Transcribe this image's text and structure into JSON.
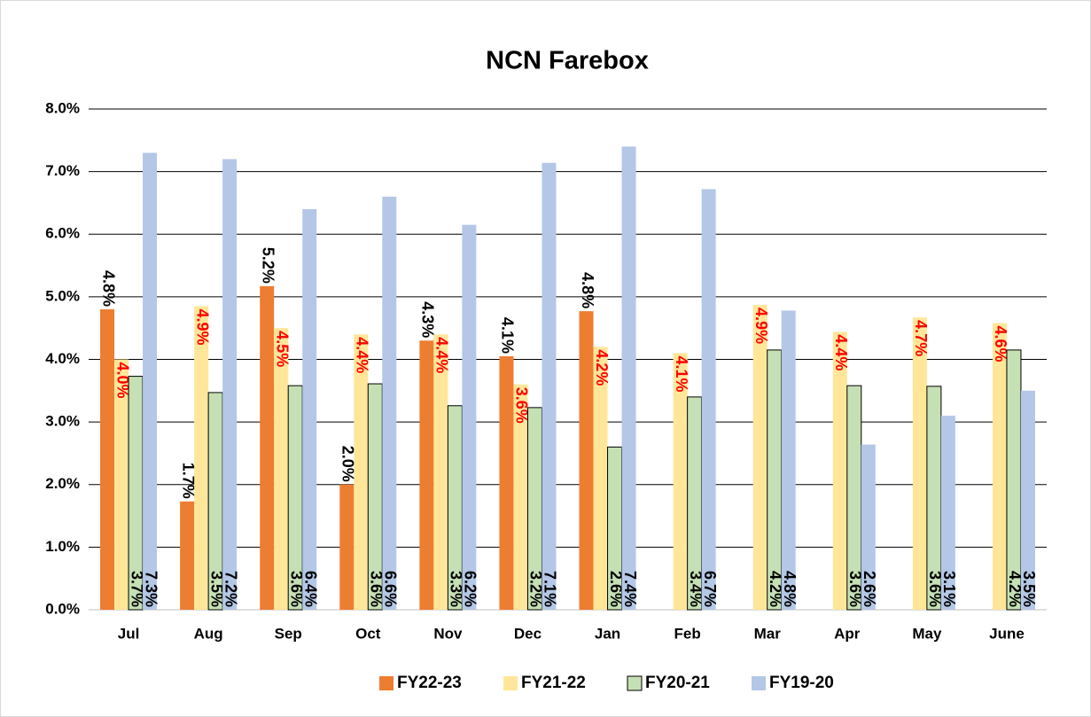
{
  "chart_data": {
    "type": "bar",
    "title": "NCN Farebox",
    "categories": [
      "Jul",
      "Aug",
      "Sep",
      "Oct",
      "Nov",
      "Dec",
      "Jan",
      "Feb",
      "Mar",
      "Apr",
      "May",
      "June"
    ],
    "series": [
      {
        "name": "FY22-23",
        "color": "#ED7D31",
        "label_color": "#000000",
        "values": [
          4.8,
          1.73,
          5.17,
          2.0,
          4.3,
          4.05,
          4.77,
          null,
          null,
          null,
          null,
          null
        ],
        "value_labels": [
          "4.8%",
          "1.7%",
          "5.2%",
          "2.0%",
          "4.3%",
          "4.1%",
          "4.8%",
          null,
          null,
          null,
          null,
          null
        ]
      },
      {
        "name": "FY21-22",
        "color": "#FFE699",
        "label_color": "#FF0000",
        "values": [
          4.0,
          4.85,
          4.5,
          4.4,
          4.4,
          3.6,
          4.2,
          4.1,
          4.87,
          4.44,
          4.67,
          4.58
        ],
        "value_labels": [
          "4.0%",
          "4.9%",
          "4.5%",
          "4.4%",
          "4.4%",
          "3.6%",
          "4.2%",
          "4.1%",
          "4.9%",
          "4.4%",
          "4.7%",
          "4.6%"
        ]
      },
      {
        "name": "FY20-21",
        "color": "#C5E0B4",
        "edgecolor": "#000000",
        "label_color": "#000000",
        "values": [
          3.73,
          3.47,
          3.58,
          3.61,
          3.26,
          3.23,
          2.6,
          3.4,
          4.15,
          3.58,
          3.57,
          4.15
        ],
        "value_labels": [
          "3.7%",
          "3.5%",
          "3.6%",
          "3.6%",
          "3.3%",
          "3.2%",
          "2.6%",
          "3.4%",
          "4.2%",
          "3.6%",
          "3.6%",
          "4.2%"
        ]
      },
      {
        "name": "FY19-20",
        "color": "#B4C7E7",
        "label_color": "#000000",
        "values": [
          7.3,
          7.2,
          6.4,
          6.6,
          6.15,
          7.14,
          7.4,
          6.72,
          4.78,
          2.64,
          3.1,
          3.5
        ],
        "value_labels": [
          "7.3%",
          "7.2%",
          "6.4%",
          "6.6%",
          "6.2%",
          "7.1%",
          "7.4%",
          "6.7%",
          "4.8%",
          "2.6%",
          "3.1%",
          "3.5%"
        ]
      }
    ],
    "ylim": [
      0,
      8
    ],
    "yticks": [
      {
        "value": 0,
        "label": "0.0%"
      },
      {
        "value": 1,
        "label": "1.0%"
      },
      {
        "value": 2,
        "label": "2.0%"
      },
      {
        "value": 3,
        "label": "3.0%"
      },
      {
        "value": 4,
        "label": "4.0%"
      },
      {
        "value": 5,
        "label": "5.0%"
      },
      {
        "value": 6,
        "label": "6.0%"
      },
      {
        "value": 7,
        "label": "7.0%"
      },
      {
        "value": 8,
        "label": "8.0%"
      }
    ],
    "grid": true,
    "legend": "bottom"
  }
}
